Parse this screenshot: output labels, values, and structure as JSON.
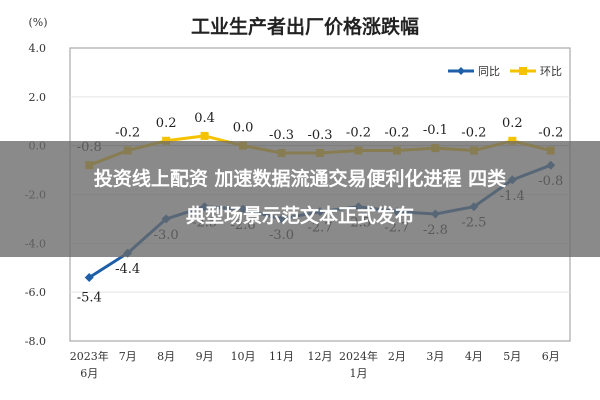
{
  "overlay": {
    "headline_line1": "投资线上配资 加速数据流通交易便利化进程 四类",
    "headline_line2": "典型场景示范文本正式发布"
  },
  "chart_data": {
    "type": "line",
    "title": "工业生产者出厂价格涨跌幅",
    "ylabel": "(%)",
    "ylim": [
      -8.0,
      4.0
    ],
    "yticks": [
      "4.0",
      "2.0",
      "0.0",
      "-2.0",
      "-4.0",
      "-6.0",
      "-8.0"
    ],
    "categories": [
      "2023年|6月",
      "7月",
      "8月",
      "9月",
      "10月",
      "11月",
      "12月",
      "2024年|1月",
      "2月",
      "3月",
      "4月",
      "5月",
      "6月"
    ],
    "legend_position": "top-right",
    "series": [
      {
        "name": "同比",
        "color": "#1f5fa8",
        "values": [
          -5.4,
          -4.4,
          -3.0,
          -2.5,
          -2.6,
          -3.0,
          -2.7,
          -2.5,
          -2.7,
          -2.8,
          -2.5,
          -1.4,
          -0.8
        ],
        "labels": [
          "-5.4",
          "-4.4",
          "-3.0",
          "-2.5",
          "-2.6",
          "-3.0",
          "-2.7",
          "-2.5",
          "-2.7",
          "-2.8",
          "-2.5",
          "-1.4",
          "-0.8"
        ]
      },
      {
        "name": "环比",
        "color": "#f5c200",
        "values": [
          -0.8,
          -0.2,
          0.2,
          0.4,
          0.0,
          -0.3,
          -0.3,
          -0.2,
          -0.2,
          -0.1,
          -0.2,
          0.2,
          -0.2
        ],
        "labels": [
          "-0.8",
          "-0.2",
          "0.2",
          "0.4",
          "0.0",
          "-0.3",
          "-0.3",
          "-0.2",
          "-0.2",
          "-0.1",
          "-0.2",
          "0.2",
          "-0.2"
        ]
      }
    ]
  }
}
